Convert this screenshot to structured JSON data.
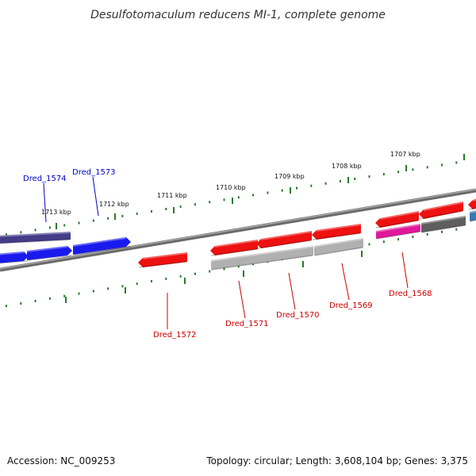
{
  "title": "Desulfotomaculum reducens MI-1, complete genome",
  "footer": {
    "accession_label": "Accession: NC_009253",
    "stats_label": "Topology: circular; Length: 3,608,104 bp; Genes: 3,375"
  },
  "colors": {
    "backbone": "#7a7a7a",
    "tick": "#2a7a2a",
    "forward_label": "#0000cc",
    "reverse_label": "#cc0000",
    "red": "#ee1111",
    "blue": "#1a1aee",
    "navy": "#443c88",
    "grey": "#b0b0b0",
    "darkgrey": "#5e5e5e",
    "magenta": "#e0189a",
    "steel": "#3a78b0"
  },
  "scale_ticks": [
    {
      "label": "1713 kbp"
    },
    {
      "label": "1712 kbp"
    },
    {
      "label": "1711 kbp"
    },
    {
      "label": "1710 kbp"
    },
    {
      "label": "1709 kbp"
    },
    {
      "label": "1708 kbp"
    },
    {
      "label": "1707 kbp"
    }
  ],
  "gene_labels": [
    {
      "label": "Dred_1574",
      "strand": "forward"
    },
    {
      "label": "Dred_1573",
      "strand": "forward"
    },
    {
      "label": "Dred_1572",
      "strand": "reverse"
    },
    {
      "label": "Dred_1571",
      "strand": "reverse"
    },
    {
      "label": "Dred_1570",
      "strand": "reverse"
    },
    {
      "label": "Dred_1569",
      "strand": "reverse"
    },
    {
      "label": "Dred_1568",
      "strand": "reverse"
    }
  ]
}
